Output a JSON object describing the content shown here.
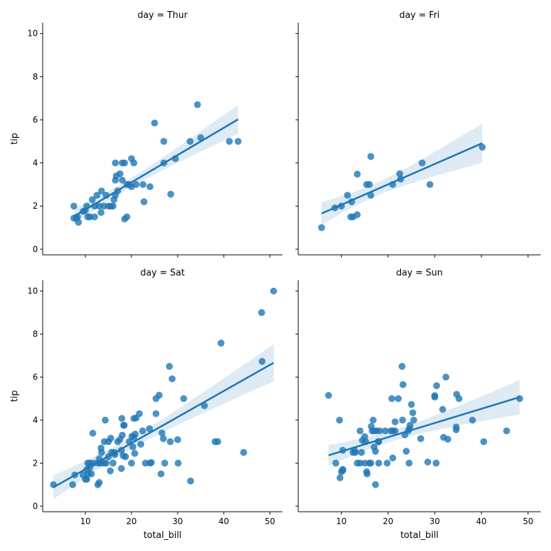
{
  "chart_data": [
    {
      "type": "scatter",
      "title": "day = Thur",
      "xlabel": "",
      "ylabel": "tip",
      "xlim": [
        0.75,
        52.7
      ],
      "ylim": [
        -0.26,
        10.5
      ],
      "xticks": [
        10,
        20,
        30,
        40,
        50
      ],
      "yticks": [
        0,
        2,
        4,
        6,
        8,
        10
      ],
      "show_xticklabels": false,
      "show_yticklabels": true,
      "regression": true,
      "points": [
        [
          7.5,
          2
        ],
        [
          7.5,
          1.44
        ],
        [
          8.3,
          1.5
        ],
        [
          8.5,
          1.25
        ],
        [
          8,
          1.45
        ],
        [
          9.5,
          1.75
        ],
        [
          10,
          1.8
        ],
        [
          10.3,
          2
        ],
        [
          10.5,
          1.5
        ],
        [
          11,
          1.5
        ],
        [
          11.5,
          2.3
        ],
        [
          12,
          2
        ],
        [
          12,
          1.5
        ],
        [
          12.5,
          2.5
        ],
        [
          13,
          2
        ],
        [
          13.5,
          2.7
        ],
        [
          13.4,
          1.7
        ],
        [
          14,
          2
        ],
        [
          14.5,
          2.5
        ],
        [
          15,
          2
        ],
        [
          15.5,
          2
        ],
        [
          16,
          2
        ],
        [
          16.2,
          2.3
        ],
        [
          16.5,
          2.5
        ],
        [
          16.5,
          3.2
        ],
        [
          16.7,
          3.4
        ],
        [
          16.5,
          4
        ],
        [
          17,
          2.7
        ],
        [
          17.5,
          3.5
        ],
        [
          18,
          3.2
        ],
        [
          18,
          4
        ],
        [
          18.5,
          4
        ],
        [
          18.5,
          1.4
        ],
        [
          19,
          1.5
        ],
        [
          19,
          3
        ],
        [
          19.5,
          3
        ],
        [
          20,
          4.2
        ],
        [
          20.5,
          4
        ],
        [
          20,
          2.9
        ],
        [
          21,
          3
        ],
        [
          22.5,
          3
        ],
        [
          22.7,
          2.2
        ],
        [
          24,
          2.9
        ],
        [
          25,
          5.85
        ],
        [
          27,
          4
        ],
        [
          27,
          5
        ],
        [
          28.5,
          2.55
        ],
        [
          29.5,
          4.2
        ],
        [
          32.7,
          5
        ],
        [
          34.3,
          6.7
        ],
        [
          35,
          5.17
        ],
        [
          41.2,
          5
        ],
        [
          43.1,
          5
        ]
      ]
    },
    {
      "type": "scatter",
      "title": "day = Fri",
      "xlabel": "",
      "ylabel": "",
      "xlim": [
        0.75,
        52.7
      ],
      "ylim": [
        -0.26,
        10.5
      ],
      "xticks": [
        10,
        20,
        30,
        40,
        50
      ],
      "yticks": [
        0,
        2,
        4,
        6,
        8,
        10
      ],
      "show_xticklabels": false,
      "show_yticklabels": false,
      "regression": true,
      "points": [
        [
          5.75,
          1
        ],
        [
          8.6,
          1.92
        ],
        [
          10,
          2
        ],
        [
          11.3,
          2.5
        ],
        [
          12,
          1.5
        ],
        [
          12.5,
          1.5
        ],
        [
          12.2,
          2.2
        ],
        [
          13.4,
          1.6
        ],
        [
          13.4,
          3.48
        ],
        [
          15.4,
          3
        ],
        [
          16,
          3
        ],
        [
          16.3,
          2.5
        ],
        [
          16.3,
          4.3
        ],
        [
          21,
          3
        ],
        [
          22.5,
          3.5
        ],
        [
          22.7,
          3.25
        ],
        [
          27.3,
          4
        ],
        [
          28.97,
          3
        ],
        [
          40.2,
          4.73
        ]
      ]
    },
    {
      "type": "scatter",
      "title": "day = Sat",
      "xlabel": "total_bill",
      "ylabel": "tip",
      "xlim": [
        0.75,
        52.7
      ],
      "ylim": [
        -0.26,
        10.5
      ],
      "xticks": [
        10,
        20,
        30,
        40,
        50
      ],
      "yticks": [
        0,
        2,
        4,
        6,
        8,
        10
      ],
      "show_xticklabels": true,
      "show_yticklabels": true,
      "regression": true,
      "points": [
        [
          3.07,
          1
        ],
        [
          7.25,
          1
        ],
        [
          7.7,
          1.45
        ],
        [
          9.5,
          1.45
        ],
        [
          10,
          1.25
        ],
        [
          10.3,
          1.25
        ],
        [
          10.3,
          1.7
        ],
        [
          10.5,
          2
        ],
        [
          10.6,
          1.5
        ],
        [
          11,
          2
        ],
        [
          11,
          1.8
        ],
        [
          11.3,
          1.5
        ],
        [
          11.6,
          3.39
        ],
        [
          11.8,
          2
        ],
        [
          12.7,
          1
        ],
        [
          13,
          1.1
        ],
        [
          12.8,
          2
        ],
        [
          13,
          2.2
        ],
        [
          13.3,
          2
        ],
        [
          13.5,
          2.5
        ],
        [
          13.4,
          2.7
        ],
        [
          14,
          2
        ],
        [
          14.1,
          3
        ],
        [
          14.3,
          4
        ],
        [
          14.5,
          2
        ],
        [
          15,
          2.3
        ],
        [
          15,
          3
        ],
        [
          15.4,
          1.64
        ],
        [
          15.5,
          3.16
        ],
        [
          15.7,
          2.5
        ],
        [
          16,
          2
        ],
        [
          16.3,
          2.5
        ],
        [
          16.4,
          2.4
        ],
        [
          17,
          3
        ],
        [
          17.5,
          3.1
        ],
        [
          17.8,
          1.75
        ],
        [
          17.8,
          2.6
        ],
        [
          17.9,
          4.08
        ],
        [
          18,
          3.3
        ],
        [
          18.2,
          2.34
        ],
        [
          18.3,
          3.76
        ],
        [
          18.4,
          3.76
        ],
        [
          18.7,
          2.3
        ],
        [
          19.5,
          3
        ],
        [
          20,
          2
        ],
        [
          20.1,
          3.25
        ],
        [
          20.3,
          2.75
        ],
        [
          20.5,
          3.2
        ],
        [
          20.5,
          4.08
        ],
        [
          20.7,
          2.45
        ],
        [
          20.8,
          3.35
        ],
        [
          21,
          4.1
        ],
        [
          21.7,
          4.3
        ],
        [
          22,
          2.88
        ],
        [
          22.4,
          3.5
        ],
        [
          23,
          2
        ],
        [
          23.9,
          3.6
        ],
        [
          24,
          2
        ],
        [
          24.3,
          2.03
        ],
        [
          25.3,
          4.3
        ],
        [
          25.3,
          5
        ],
        [
          26,
          5.16
        ],
        [
          26.4,
          1.5
        ],
        [
          26.6,
          3.4
        ],
        [
          26.9,
          3.14
        ],
        [
          27.2,
          2
        ],
        [
          28.2,
          6.5
        ],
        [
          28.4,
          3
        ],
        [
          28.8,
          5.92
        ],
        [
          30.1,
          2
        ],
        [
          30,
          3.09
        ],
        [
          31.3,
          5
        ],
        [
          32.8,
          1.17
        ],
        [
          35.8,
          4.67
        ],
        [
          38.1,
          3
        ],
        [
          38.7,
          3
        ],
        [
          39.4,
          7.58
        ],
        [
          44.3,
          2.5
        ],
        [
          48.2,
          9
        ],
        [
          48.3,
          6.73
        ],
        [
          50.8,
          10
        ]
      ]
    },
    {
      "type": "scatter",
      "title": "day = Sun",
      "xlabel": "total_bill",
      "ylabel": "",
      "xlim": [
        0.75,
        52.7
      ],
      "ylim": [
        -0.26,
        10.5
      ],
      "xticks": [
        10,
        20,
        30,
        40,
        50
      ],
      "yticks": [
        0,
        2,
        4,
        6,
        8,
        10
      ],
      "show_xticklabels": true,
      "show_yticklabels": false,
      "regression": true,
      "points": [
        [
          7.25,
          5.15
        ],
        [
          8.8,
          2
        ],
        [
          9.6,
          4
        ],
        [
          9.7,
          1.32
        ],
        [
          10,
          1.6
        ],
        [
          10.3,
          1.66
        ],
        [
          10.3,
          1.71
        ],
        [
          10.3,
          2.6
        ],
        [
          12.5,
          2.5
        ],
        [
          12.8,
          2.6
        ],
        [
          13,
          2.5
        ],
        [
          13.4,
          2
        ],
        [
          14,
          3.5
        ],
        [
          14,
          2
        ],
        [
          14.3,
          2.5
        ],
        [
          14.5,
          3.06
        ],
        [
          15,
          2
        ],
        [
          15,
          3.23
        ],
        [
          15.2,
          3.0
        ],
        [
          15.4,
          1.6
        ],
        [
          15.5,
          1.5
        ],
        [
          16,
          2
        ],
        [
          16.3,
          2
        ],
        [
          16.4,
          3.71
        ],
        [
          16.6,
          3.5
        ],
        [
          16.8,
          4
        ],
        [
          17,
          3.5
        ],
        [
          17,
          2.75
        ],
        [
          17.3,
          2.55
        ],
        [
          17.3,
          1.0
        ],
        [
          17.5,
          3.5
        ],
        [
          17.9,
          3
        ],
        [
          18,
          3
        ],
        [
          18,
          2.0
        ],
        [
          18.2,
          3.5
        ],
        [
          19.4,
          3.5
        ],
        [
          19.8,
          2
        ],
        [
          20.6,
          3.5
        ],
        [
          20.8,
          5
        ],
        [
          21,
          2.24
        ],
        [
          21,
          3.5
        ],
        [
          21.5,
          3.5
        ],
        [
          21.5,
          3.92
        ],
        [
          22.2,
          5
        ],
        [
          23,
          6.5
        ],
        [
          23.1,
          4
        ],
        [
          23.2,
          5.65
        ],
        [
          23.6,
          3.31
        ],
        [
          23.9,
          2.55
        ],
        [
          24.3,
          3.5
        ],
        [
          24.5,
          2
        ],
        [
          24.6,
          3.6
        ],
        [
          24.7,
          3.76
        ],
        [
          25,
          4.73
        ],
        [
          25.3,
          4.34
        ],
        [
          25.5,
          4
        ],
        [
          27,
          3.14
        ],
        [
          28.5,
          2.05
        ],
        [
          30,
          5.07
        ],
        [
          30,
          5.14
        ],
        [
          30.3,
          2
        ],
        [
          30.4,
          5.6
        ],
        [
          31.7,
          4.5
        ],
        [
          31.9,
          3.2
        ],
        [
          32.4,
          6
        ],
        [
          32.8,
          3.11
        ],
        [
          34.6,
          3.55
        ],
        [
          34.6,
          3.68
        ],
        [
          34.7,
          5.2
        ],
        [
          35.2,
          5
        ],
        [
          38.1,
          4
        ],
        [
          40.5,
          3
        ],
        [
          45.4,
          3.5
        ],
        [
          48.2,
          5
        ]
      ]
    }
  ],
  "colors": {
    "points": "#1f77b4",
    "line": "#1f77b4",
    "band": "#1f77b4"
  }
}
